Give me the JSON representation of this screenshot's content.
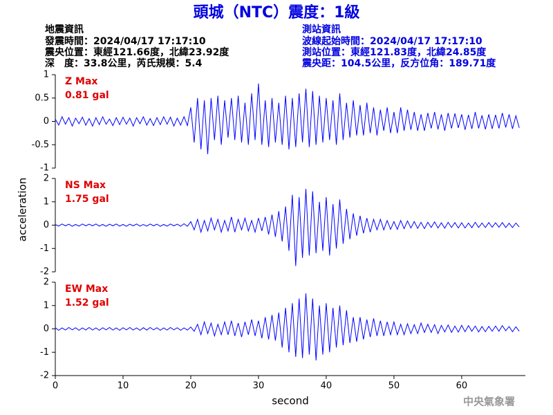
{
  "title": "頭城（NTC）震度：1級",
  "quake_info": [
    "地震資訊",
    "發震時間：2024/04/17 17:17:10",
    "震央位置：東經121.66度，北緯23.92度",
    "深　度：33.8公里，芮氏規模：5.4"
  ],
  "station_info": [
    "測站資訊",
    "波線起始時間：2024/04/17 17:17:10",
    "測站位置：東經121.83度，北緯24.85度",
    "震央距：104.5公里，反方位角：189.71度"
  ],
  "watermark": "中央氣象署",
  "chart_data": {
    "type": "line",
    "xlabel": "second",
    "ylabel": "acceleration",
    "xlim": [
      0,
      69.4
    ],
    "xticks": [
      0,
      10,
      20,
      30,
      40,
      50,
      60
    ],
    "x": [
      0,
      0.5,
      1,
      1.5,
      2,
      2.5,
      3,
      3.5,
      4,
      4.5,
      5,
      5.5,
      6,
      6.5,
      7,
      7.5,
      8,
      8.5,
      9,
      9.5,
      10,
      10.5,
      11,
      11.5,
      12,
      12.5,
      13,
      13.5,
      14,
      14.5,
      15,
      15.5,
      16,
      16.5,
      17,
      17.5,
      18,
      18.5,
      19,
      19.5,
      20,
      20.5,
      21,
      21.5,
      22,
      22.5,
      23,
      23.5,
      24,
      24.5,
      25,
      25.5,
      26,
      26.5,
      27,
      27.5,
      28,
      28.5,
      29,
      29.5,
      30,
      30.5,
      31,
      31.5,
      32,
      32.5,
      33,
      33.5,
      34,
      34.5,
      35,
      35.5,
      36,
      36.5,
      37,
      37.5,
      38,
      38.5,
      39,
      39.5,
      40,
      40.5,
      41,
      41.5,
      42,
      42.5,
      43,
      43.5,
      44,
      44.5,
      45,
      45.5,
      46,
      46.5,
      47,
      47.5,
      48,
      48.5,
      49,
      49.5,
      50,
      50.5,
      51,
      51.5,
      52,
      52.5,
      53,
      53.5,
      54,
      54.5,
      55,
      55.5,
      56,
      56.5,
      57,
      57.5,
      58,
      58.5,
      59,
      59.5,
      60,
      60.5,
      61,
      61.5,
      62,
      62.5,
      63,
      63.5,
      64,
      64.5,
      65,
      65.5,
      66,
      66.5,
      67,
      67.5,
      68,
      68.5
    ],
    "panels": [
      {
        "label": "Z Max",
        "max_label": "0.81 gal",
        "ylim": [
          -1,
          1
        ],
        "yticks": [
          -1,
          -0.5,
          0,
          0.5,
          1
        ],
        "color": "#0000ff",
        "values": [
          0.05,
          -0.08,
          0.1,
          -0.06,
          0.08,
          -0.1,
          0.07,
          -0.05,
          0.09,
          -0.08,
          0.06,
          -0.1,
          0.08,
          -0.07,
          0.1,
          -0.06,
          0.05,
          -0.09,
          0.08,
          -0.07,
          0.09,
          -0.06,
          0.07,
          -0.1,
          0.08,
          -0.05,
          0.1,
          -0.08,
          0.06,
          -0.09,
          0.08,
          -0.07,
          0.1,
          -0.06,
          0.09,
          -0.1,
          0.07,
          -0.08,
          0.1,
          -0.09,
          0.3,
          -0.45,
          0.5,
          -0.6,
          0.45,
          -0.7,
          0.5,
          -0.4,
          0.55,
          -0.5,
          0.45,
          -0.35,
          0.5,
          -0.4,
          0.55,
          -0.45,
          0.4,
          -0.5,
          0.6,
          -0.4,
          0.81,
          -0.5,
          0.45,
          -0.55,
          0.5,
          -0.45,
          0.4,
          -0.5,
          0.55,
          -0.6,
          0.5,
          -0.55,
          0.6,
          -0.45,
          0.7,
          -0.55,
          0.65,
          -0.5,
          0.55,
          -0.45,
          0.5,
          -0.4,
          0.45,
          -0.5,
          0.6,
          -0.4,
          0.4,
          -0.35,
          0.45,
          -0.3,
          0.35,
          -0.3,
          0.4,
          -0.25,
          0.3,
          -0.3,
          0.25,
          -0.2,
          0.3,
          -0.25,
          0.2,
          -0.25,
          0.3,
          -0.2,
          0.25,
          -0.18,
          0.2,
          -0.2,
          0.15,
          -0.2,
          0.18,
          -0.15,
          0.2,
          -0.17,
          0.15,
          -0.2,
          0.18,
          -0.15,
          0.17,
          -0.14,
          0.15,
          -0.18,
          0.14,
          -0.16,
          0.2,
          -0.15,
          0.13,
          -0.17,
          0.15,
          -0.16,
          0.14,
          -0.15,
          0.18,
          -0.13,
          0.15,
          -0.16,
          0.12,
          -0.14
        ]
      },
      {
        "label": "NS Max",
        "max_label": "1.75 gal",
        "ylim": [
          -2,
          2
        ],
        "yticks": [
          -2,
          -1,
          0,
          1,
          2
        ],
        "color": "#0000ff",
        "values": [
          0.03,
          -0.04,
          0.05,
          -0.03,
          0.04,
          -0.05,
          0.03,
          -0.04,
          0.05,
          -0.03,
          0.04,
          -0.03,
          0.05,
          -0.04,
          0.03,
          -0.05,
          0.04,
          -0.03,
          0.05,
          -0.04,
          0.03,
          -0.05,
          0.04,
          -0.03,
          0.05,
          -0.04,
          0.03,
          -0.04,
          0.05,
          -0.03,
          0.04,
          -0.05,
          0.03,
          -0.04,
          0.05,
          -0.03,
          0.04,
          -0.05,
          0.06,
          -0.05,
          0.15,
          -0.2,
          0.25,
          -0.3,
          0.2,
          -0.25,
          0.3,
          -0.2,
          0.25,
          -0.3,
          0.2,
          -0.25,
          0.35,
          -0.3,
          0.25,
          -0.2,
          0.3,
          -0.25,
          0.2,
          -0.3,
          0.3,
          -0.25,
          0.35,
          -0.4,
          0.45,
          -0.5,
          0.6,
          -0.7,
          0.8,
          -1.1,
          1.3,
          -1.75,
          1.2,
          -1.4,
          1.55,
          -1.3,
          1.45,
          -1.2,
          1.0,
          -1.1,
          1.2,
          -1.3,
          0.9,
          -1.0,
          1.1,
          -0.8,
          0.7,
          -0.6,
          0.5,
          -0.45,
          0.4,
          -0.35,
          0.3,
          -0.3,
          0.25,
          -0.2,
          0.25,
          -0.2,
          0.2,
          -0.18,
          0.15,
          -0.18,
          0.2,
          -0.15,
          0.18,
          -0.12,
          0.15,
          -0.14,
          0.12,
          -0.15,
          0.12,
          -0.1,
          0.14,
          -0.12,
          0.1,
          -0.13,
          0.12,
          -0.1,
          0.11,
          -0.12,
          0.1,
          -0.12,
          0.09,
          -0.11,
          0.12,
          -0.1,
          0.09,
          -0.1,
          0.11,
          -0.09,
          0.1,
          -0.09,
          0.11,
          -0.1,
          0.08,
          -0.1,
          0.09,
          -0.08
        ]
      },
      {
        "label": "EW Max",
        "max_label": "1.52 gal",
        "ylim": [
          -2,
          2
        ],
        "yticks": [
          -2,
          -1,
          0,
          1,
          2
        ],
        "color": "#0000ff",
        "values": [
          0.05,
          -0.06,
          0.04,
          -0.05,
          0.06,
          -0.04,
          0.05,
          -0.06,
          0.04,
          -0.05,
          0.06,
          -0.05,
          0.04,
          -0.06,
          0.05,
          -0.04,
          0.06,
          -0.05,
          0.04,
          -0.06,
          0.05,
          -0.04,
          0.06,
          -0.05,
          0.04,
          -0.06,
          0.05,
          -0.05,
          0.06,
          -0.04,
          0.05,
          -0.06,
          0.04,
          -0.05,
          0.06,
          -0.04,
          0.05,
          -0.06,
          0.04,
          -0.05,
          0.08,
          -0.1,
          0.2,
          -0.25,
          0.3,
          -0.2,
          0.25,
          -0.3,
          0.2,
          -0.25,
          0.3,
          -0.25,
          0.35,
          -0.3,
          0.25,
          -0.35,
          0.3,
          -0.25,
          0.4,
          -0.3,
          0.35,
          -0.4,
          0.5,
          -0.45,
          0.6,
          -0.5,
          0.7,
          -0.8,
          0.9,
          -1.0,
          1.1,
          -1.2,
          1.3,
          -1.25,
          1.52,
          -1.1,
          1.3,
          -1.35,
          1.0,
          -1.1,
          1.1,
          -1.0,
          0.9,
          -0.8,
          1.0,
          -0.7,
          0.8,
          -0.6,
          0.5,
          -0.55,
          0.5,
          -0.45,
          0.4,
          -0.35,
          0.45,
          -0.3,
          0.35,
          -0.3,
          0.3,
          -0.25,
          0.3,
          -0.25,
          0.2,
          -0.25,
          0.22,
          -0.2,
          0.18,
          -0.2,
          0.25,
          -0.15,
          0.2,
          -0.15,
          0.18,
          -0.2,
          0.15,
          -0.13,
          0.17,
          -0.15,
          0.12,
          -0.14,
          0.15,
          -0.12,
          0.14,
          -0.1,
          0.12,
          -0.13,
          0.1,
          -0.12,
          0.11,
          -0.1,
          0.12,
          -0.1,
          0.14,
          -0.08,
          0.1,
          -0.12,
          0.09,
          -0.1
        ]
      }
    ]
  }
}
